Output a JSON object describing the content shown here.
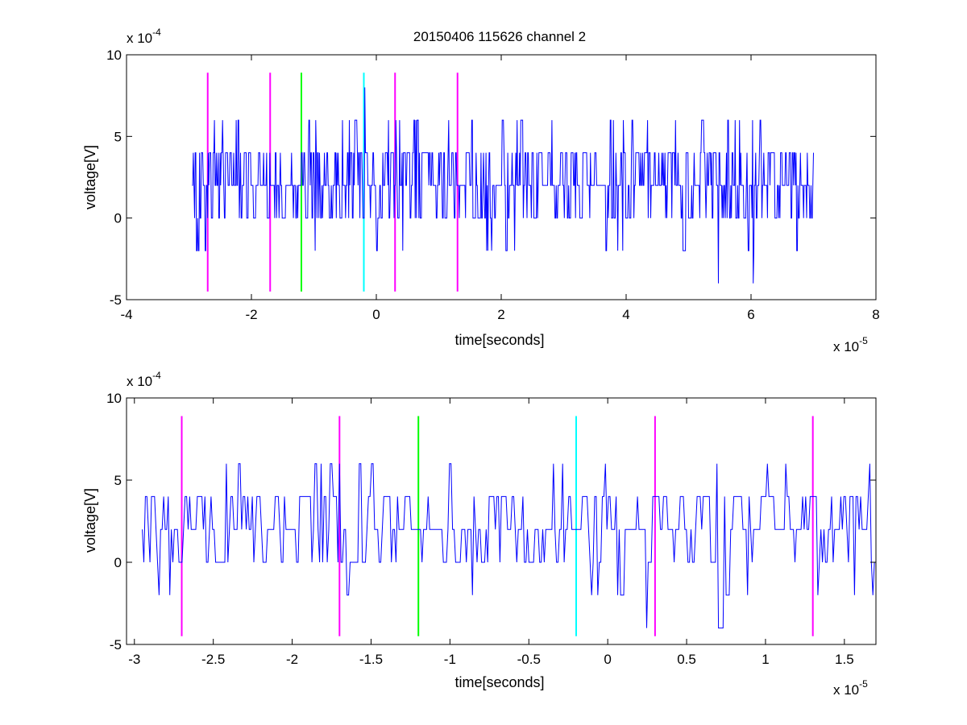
{
  "figure": {
    "title": "20150406 115626 channel 2"
  },
  "chart_data": [
    {
      "type": "line",
      "title": "20150406 115626 channel 2",
      "xlabel": "time[seconds]",
      "ylabel": "voltage[V]",
      "x_multiplier": {
        "base": "x 10",
        "exp": "-5"
      },
      "y_multiplier": {
        "base": "x 10",
        "exp": "-4"
      },
      "xlim": [
        -4,
        8
      ],
      "ylim": [
        -5,
        10
      ],
      "xticks": [
        -4,
        -2,
        0,
        2,
        4,
        6,
        8
      ],
      "xtick_labels": [
        "-4",
        "-2",
        "0",
        "2",
        "4",
        "6",
        "8"
      ],
      "yticks": [
        -5,
        0,
        5,
        10
      ],
      "ytick_labels": [
        "-5",
        "0",
        "5",
        "10"
      ],
      "grid": false,
      "series": [
        {
          "color": "#0000ff",
          "x_range": [
            -2.95,
            7.0
          ],
          "y_min": -4,
          "y_max": 8,
          "baseline": 2,
          "levels": [
            -4,
            -2,
            0,
            2,
            4,
            6,
            8
          ]
        }
      ],
      "markers": [
        {
          "x": -2.7,
          "y_range": [
            -4.5,
            8.9
          ],
          "color": "#ff00ff"
        },
        {
          "x": -1.7,
          "y_range": [
            -4.5,
            8.9
          ],
          "color": "#ff00ff"
        },
        {
          "x": -1.2,
          "y_range": [
            -4.5,
            8.9
          ],
          "color": "#00ff00"
        },
        {
          "x": -0.2,
          "y_range": [
            -4.5,
            8.9
          ],
          "color": "#00ffff"
        },
        {
          "x": 0.3,
          "y_range": [
            -4.5,
            8.9
          ],
          "color": "#ff00ff"
        },
        {
          "x": 1.3,
          "y_range": [
            -4.5,
            8.9
          ],
          "color": "#ff00ff"
        }
      ]
    },
    {
      "type": "line",
      "title": "",
      "xlabel": "time[seconds]",
      "ylabel": "voltage[V]",
      "x_multiplier": {
        "base": "x 10",
        "exp": "-5"
      },
      "y_multiplier": {
        "base": "x 10",
        "exp": "-4"
      },
      "xlim": [
        -3.05,
        1.7
      ],
      "ylim": [
        -5,
        10
      ],
      "xticks": [
        -3,
        -2.5,
        -2,
        -1.5,
        -1,
        -0.5,
        0,
        0.5,
        1,
        1.5
      ],
      "xtick_labels": [
        "-3",
        "-2.5",
        "-2",
        "-1.5",
        "-1",
        "-0.5",
        "0",
        "0.5",
        "1",
        "1.5"
      ],
      "yticks": [
        -5,
        0,
        5,
        10
      ],
      "ytick_labels": [
        "-5",
        "0",
        "5",
        "10"
      ],
      "grid": false,
      "series": [
        {
          "color": "#0000ff",
          "x_range": [
            -2.95,
            1.7
          ],
          "y_min": -4,
          "y_max": 6,
          "baseline": 2,
          "levels": [
            -4,
            -2,
            0,
            2,
            4,
            6
          ]
        }
      ],
      "markers": [
        {
          "x": -2.7,
          "y_range": [
            -4.5,
            8.9
          ],
          "color": "#ff00ff"
        },
        {
          "x": -1.7,
          "y_range": [
            -4.5,
            8.9
          ],
          "color": "#ff00ff"
        },
        {
          "x": -1.2,
          "y_range": [
            -4.5,
            8.9
          ],
          "color": "#00ff00"
        },
        {
          "x": -0.2,
          "y_range": [
            -4.5,
            8.9
          ],
          "color": "#00ffff"
        },
        {
          "x": 0.3,
          "y_range": [
            -4.5,
            8.9
          ],
          "color": "#ff00ff"
        },
        {
          "x": 1.3,
          "y_range": [
            -4.5,
            8.9
          ],
          "color": "#ff00ff"
        }
      ]
    }
  ]
}
